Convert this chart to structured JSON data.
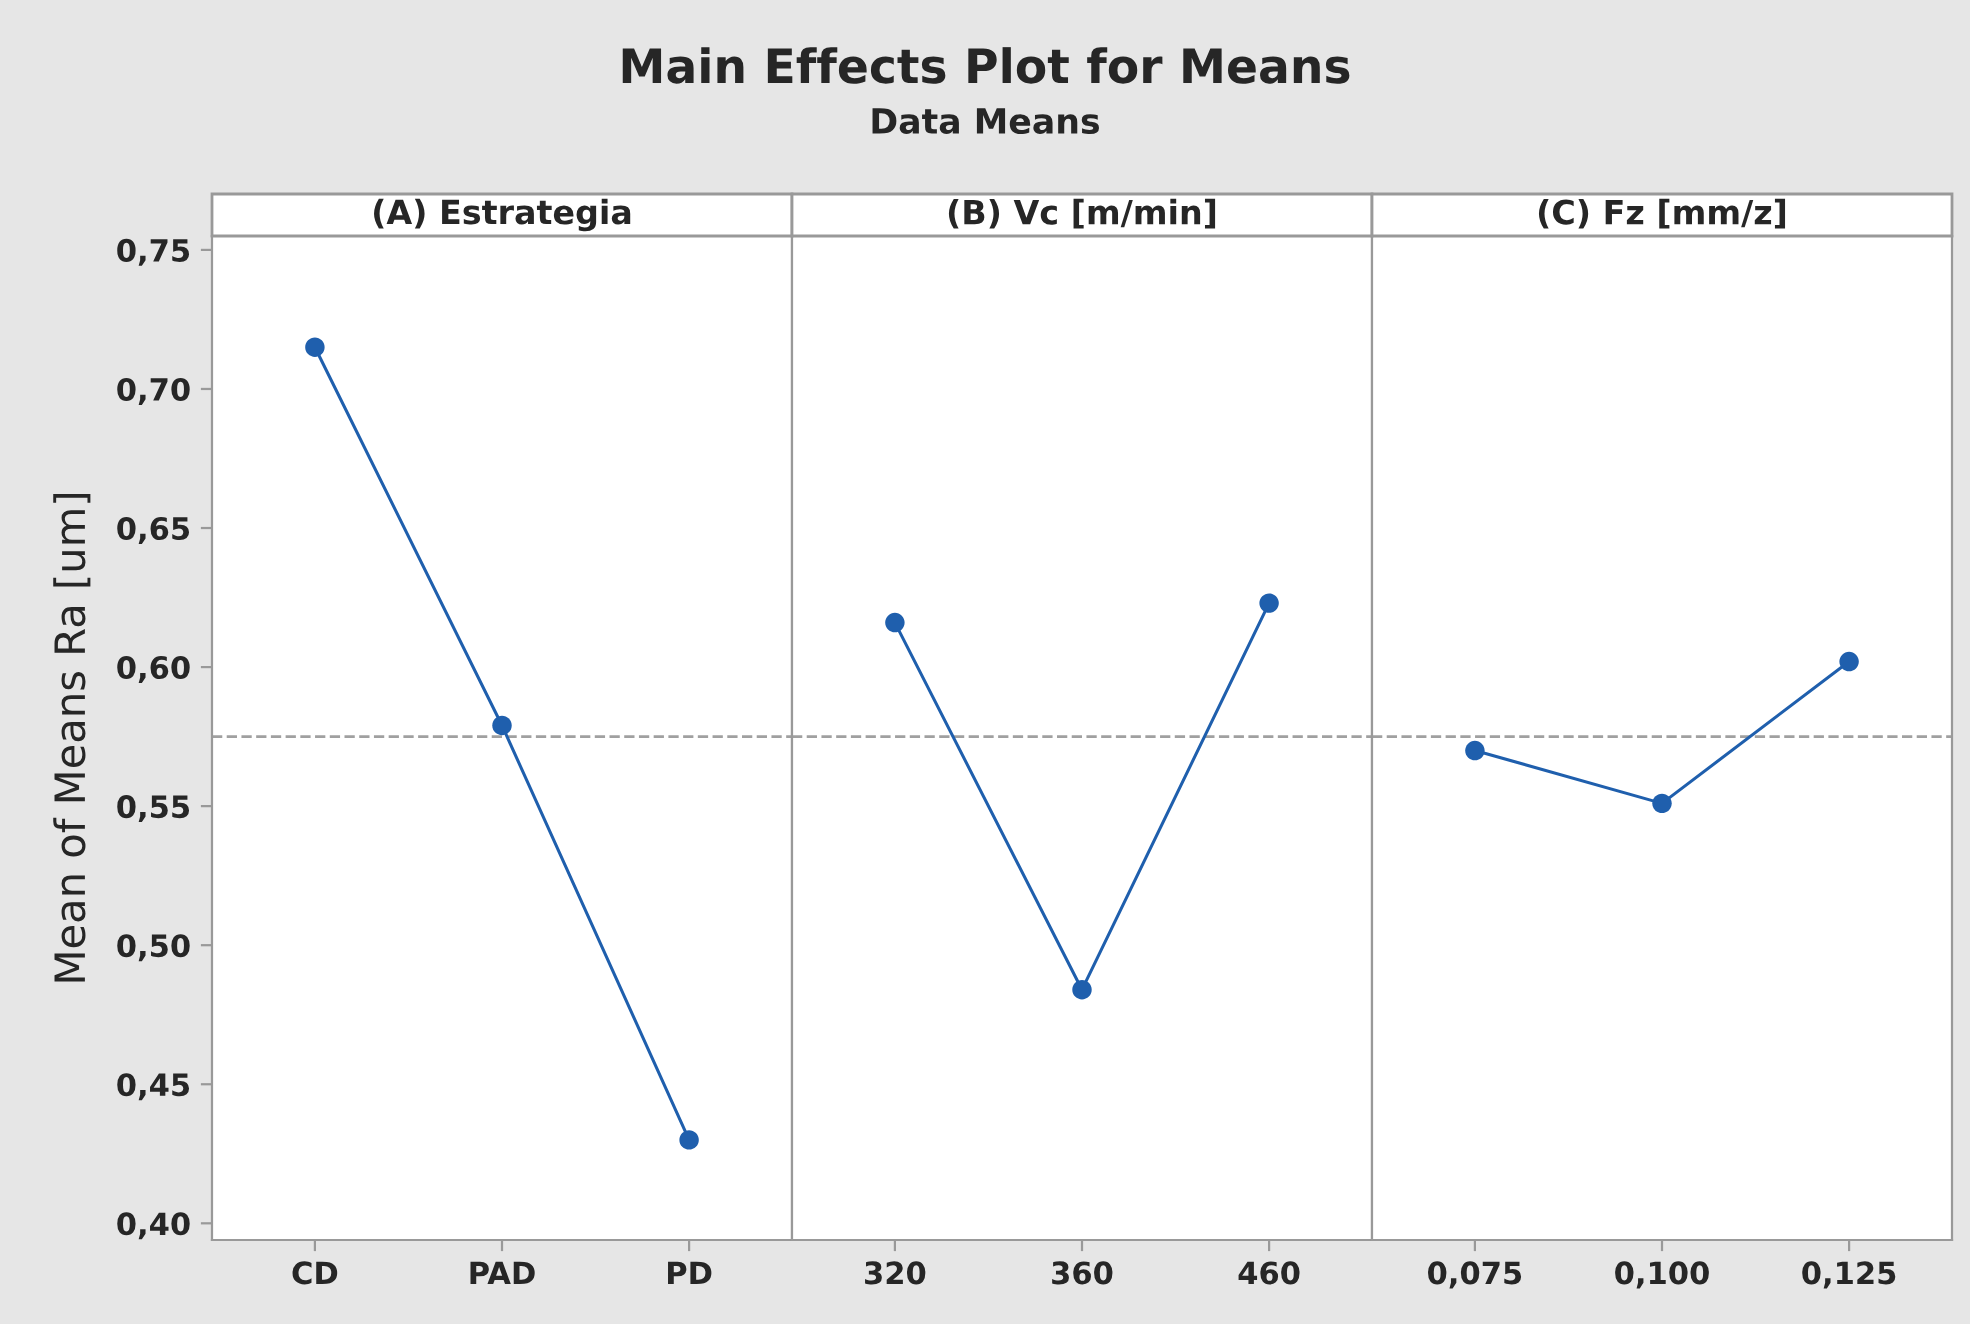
{
  "chart_data": [
    {
      "type": "line",
      "title": "(A) Estrategia",
      "annotations": [
        "Main Effects Plot for Means",
        "Data Means"
      ],
      "ylabel": "Mean of Means Ra [um]",
      "categories": [
        "CD",
        "PAD",
        "PD"
      ],
      "series": [
        {
          "color": "#1f5fad",
          "values": [
            0.715,
            0.579,
            0.43
          ]
        }
      ],
      "ylim": [
        0.394,
        0.755
      ],
      "yticks": [
        {
          "value": 0.4,
          "label": "0,40"
        },
        {
          "value": 0.45,
          "label": "0,45"
        },
        {
          "value": 0.5,
          "label": "0,50"
        },
        {
          "value": 0.55,
          "label": "0,55"
        },
        {
          "value": 0.6,
          "label": "0,60"
        },
        {
          "value": 0.65,
          "label": "0,65"
        },
        {
          "value": 0.7,
          "label": "0,70"
        },
        {
          "value": 0.75,
          "label": "0,75"
        }
      ],
      "ref_lines": [
        {
          "axis": "y",
          "value": 0.575,
          "color": "#a0a0a0",
          "line_style": "dashed"
        }
      ],
      "marker": "circle",
      "grid": false
    },
    {
      "type": "line",
      "title": "(B) Vc [m/min]",
      "categories": [
        "320",
        "360",
        "460"
      ],
      "series": [
        {
          "color": "#1f5fad",
          "values": [
            0.616,
            0.484,
            0.623
          ]
        }
      ],
      "ylim": [
        0.394,
        0.755
      ],
      "tick_labels": "x",
      "ref_lines": [
        {
          "axis": "y",
          "value": 0.575,
          "color": "#a0a0a0",
          "line_style": "dashed"
        }
      ],
      "marker": "circle",
      "grid": false
    },
    {
      "type": "line",
      "title": "(C) Fz [mm/z]",
      "categories": [
        "0,075",
        "0,100",
        "0,125"
      ],
      "series": [
        {
          "color": "#1f5fad",
          "values": [
            0.57,
            0.551,
            0.602
          ]
        }
      ],
      "ylim": [
        0.394,
        0.755
      ],
      "tick_labels": "x",
      "ref_lines": [
        {
          "axis": "y",
          "value": 0.575,
          "color": "#a0a0a0",
          "line_style": "dashed"
        }
      ],
      "marker": "circle",
      "grid": false
    }
  ]
}
